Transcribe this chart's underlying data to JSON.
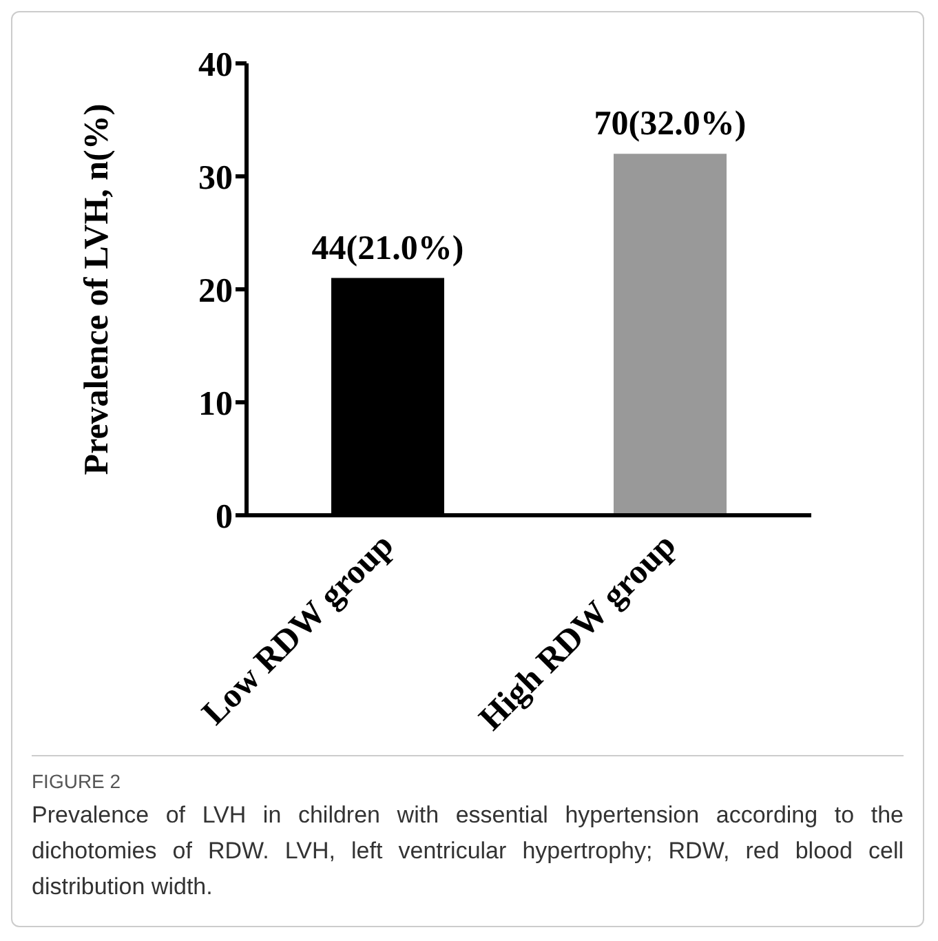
{
  "chart_data": {
    "type": "bar",
    "ylabel": "Prevalence of LVH, n(%)",
    "categories": [
      "Low RDW group",
      "High RDW group"
    ],
    "values": [
      21.0,
      32.0
    ],
    "colors": [
      "#000000",
      "#999999"
    ],
    "value_labels": [
      "44(21.0%)",
      "70(32.0%)"
    ],
    "ylim": [
      0,
      40
    ],
    "yticks": [
      0,
      10,
      20,
      30,
      40
    ],
    "grid": false,
    "legend": false,
    "annotations": [
      "FIGURE 2",
      "Prevalence of LVH in children with essential hypertension according to the dichotomies of RDW. LVH, left ventricular hypertrophy; RDW, red blood cell distribution width."
    ]
  }
}
